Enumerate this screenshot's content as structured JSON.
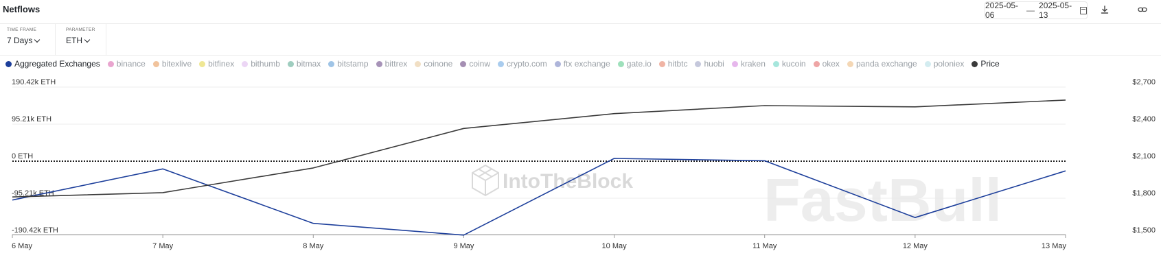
{
  "header": {
    "title": "Netflows",
    "date_from": "2025-05-06",
    "date_sep": "—",
    "date_to": "2025-05-13",
    "download_icon": "download-icon",
    "link_icon": "link-icon"
  },
  "controls": {
    "time_frame_label": "TIME FRAME",
    "time_frame_value": "7 Days",
    "parameter_label": "PARAMETER",
    "parameter_value": "ETH"
  },
  "legend": [
    {
      "label": "Aggregated Exchanges",
      "color": "#1d3f9b",
      "active": true
    },
    {
      "label": "binance",
      "color": "#e9a5cf",
      "active": false
    },
    {
      "label": "bitexlive",
      "color": "#f1c39c",
      "active": false
    },
    {
      "label": "bitfinex",
      "color": "#efe794",
      "active": false
    },
    {
      "label": "bithumb",
      "color": "#ecd6f5",
      "active": false
    },
    {
      "label": "bitmax",
      "color": "#9fcdbf",
      "active": false
    },
    {
      "label": "bitstamp",
      "color": "#9fc4e6",
      "active": false
    },
    {
      "label": "bittrex",
      "color": "#a793b8",
      "active": false
    },
    {
      "label": "coinone",
      "color": "#f1dfc4",
      "active": false
    },
    {
      "label": "coinw",
      "color": "#a58fb3",
      "active": false
    },
    {
      "label": "crypto.com",
      "color": "#a9ccee",
      "active": false
    },
    {
      "label": "ftx exchange",
      "color": "#aeb5da",
      "active": false
    },
    {
      "label": "gate.io",
      "color": "#9ee0bb",
      "active": false
    },
    {
      "label": "hitbtc",
      "color": "#f0b4a4",
      "active": false
    },
    {
      "label": "huobi",
      "color": "#c5c8dc",
      "active": false
    },
    {
      "label": "kraken",
      "color": "#e6b7ec",
      "active": false
    },
    {
      "label": "kucoin",
      "color": "#a6e6dc",
      "active": false
    },
    {
      "label": "okex",
      "color": "#eea5a5",
      "active": false
    },
    {
      "label": "panda exchange",
      "color": "#f4d7b5",
      "active": false
    },
    {
      "label": "poloniex",
      "color": "#d3ecf0",
      "active": false
    },
    {
      "label": "Price",
      "color": "#3a3a3a",
      "active": true
    }
  ],
  "watermarks": {
    "brand": "IntoTheBlock",
    "overlay": "FastBull"
  },
  "chart_data": {
    "type": "line",
    "categories": [
      "6 May",
      "7 May",
      "8 May",
      "9 May",
      "10 May",
      "11 May",
      "12 May",
      "13 May"
    ],
    "y_left": {
      "ticks": [
        190420,
        95210,
        0,
        -95210,
        -190420
      ],
      "tick_labels": [
        "190.42k ETH",
        "95.21k ETH",
        "0 ETH",
        "-95.21k ETH",
        "-190.42k ETH"
      ],
      "range": [
        -190420,
        190420
      ]
    },
    "y_right": {
      "ticks": [
        2700,
        2400,
        2100,
        1800,
        1500
      ],
      "tick_labels": [
        "$2,700",
        "$2,400",
        "$2,100",
        "$1,800",
        "$1,500"
      ],
      "range": [
        1500,
        2700
      ]
    },
    "grid": true,
    "zero_line": "dotted",
    "series": [
      {
        "name": "Aggregated Exchanges",
        "axis": "left",
        "color": "#1d3f9b",
        "values": [
          -100000,
          -20000,
          -160000,
          -190000,
          7000,
          1000,
          -145000,
          -25000
        ]
      },
      {
        "name": "Price",
        "axis": "right",
        "color": "#3a3a3a",
        "values": [
          1810,
          1845,
          2045,
          2365,
          2485,
          2550,
          2540,
          2595
        ]
      }
    ]
  }
}
